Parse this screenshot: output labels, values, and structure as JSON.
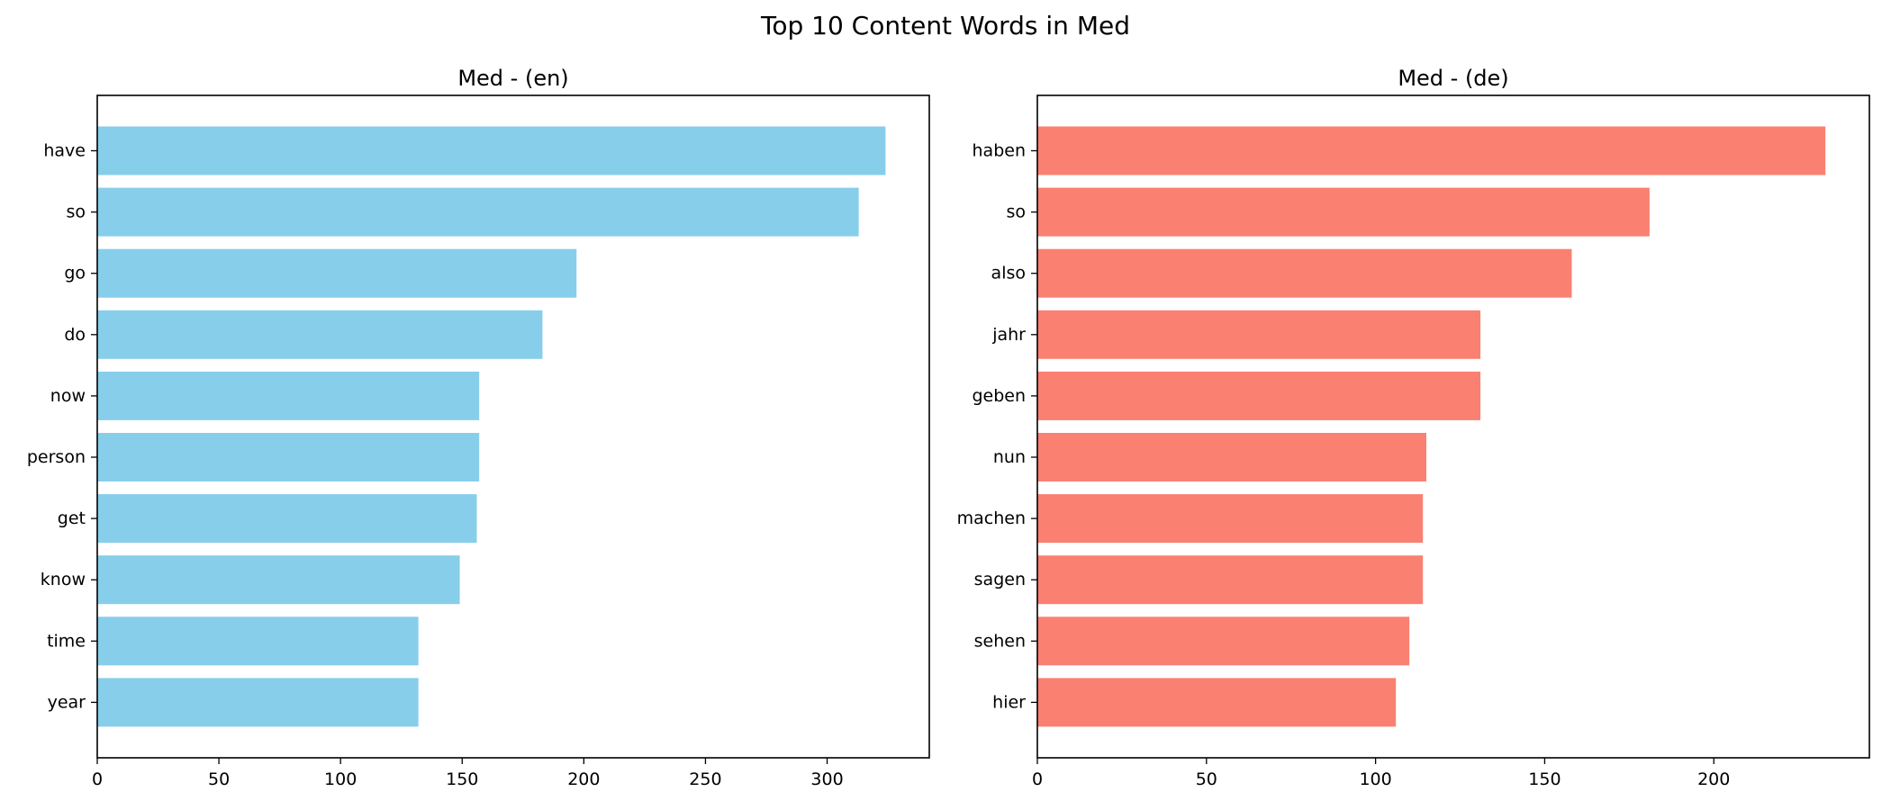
{
  "title": "Top 10 Content Words in Med",
  "chart_data": [
    {
      "type": "bar",
      "orientation": "horizontal",
      "title": "Med - (en)",
      "xlabel": "",
      "ylabel": "",
      "color": "#87CEEB",
      "categories": [
        "have",
        "so",
        "go",
        "do",
        "now",
        "person",
        "get",
        "know",
        "time",
        "year"
      ],
      "values": [
        324,
        313,
        197,
        183,
        157,
        157,
        156,
        149,
        132,
        132
      ],
      "xlim": [
        0,
        342
      ],
      "xticks": [
        0,
        50,
        100,
        150,
        200,
        250,
        300
      ],
      "grid": false,
      "legend": "none"
    },
    {
      "type": "bar",
      "orientation": "horizontal",
      "title": "Med - (de)",
      "xlabel": "",
      "ylabel": "",
      "color": "#FA8072",
      "categories": [
        "haben",
        "so",
        "also",
        "jahr",
        "geben",
        "nun",
        "machen",
        "sagen",
        "sehen",
        "hier"
      ],
      "values": [
        233,
        181,
        158,
        131,
        131,
        115,
        114,
        114,
        110,
        106
      ],
      "xlim": [
        0,
        246
      ],
      "xticks": [
        0,
        50,
        100,
        150,
        200
      ],
      "grid": false,
      "legend": "none"
    }
  ]
}
